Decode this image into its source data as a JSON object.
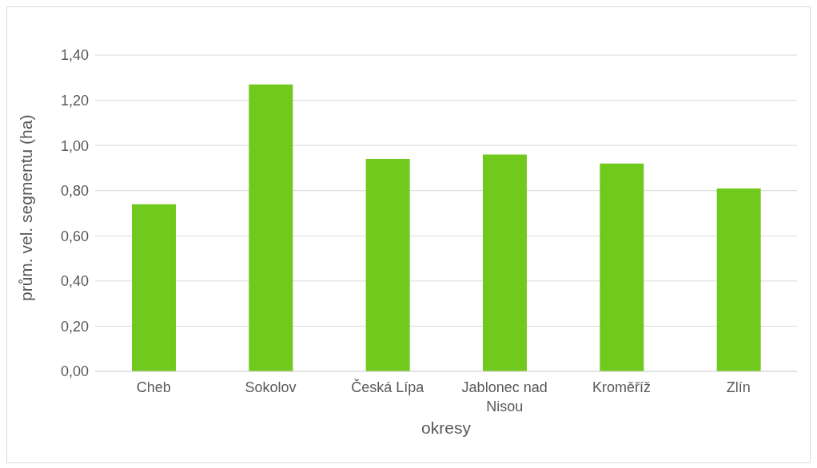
{
  "chart_data": {
    "type": "bar",
    "xlabel": "okresy",
    "ylabel": "prům. vel. segmentu (ha)",
    "categories": [
      "Cheb",
      "Sokolov",
      "Česká Lípa",
      "Jablonec nad Nisou",
      "Kroměříž",
      "Zlín"
    ],
    "values": [
      0.74,
      1.27,
      0.94,
      0.96,
      0.92,
      0.81
    ],
    "color": "#70c91c",
    "ylim": [
      0,
      1.4
    ],
    "yticks": [
      {
        "value": 0,
        "label": "0,00"
      },
      {
        "value": 0.2,
        "label": "0,20"
      },
      {
        "value": 0.4,
        "label": "0,40"
      },
      {
        "value": 0.6,
        "label": "0,60"
      },
      {
        "value": 0.8,
        "label": "0,80"
      },
      {
        "value": 1,
        "label": "1,00"
      },
      {
        "value": 1.2,
        "label": "1,20"
      },
      {
        "value": 1.4,
        "label": "1,40"
      }
    ],
    "grid": "y",
    "legend": false
  }
}
